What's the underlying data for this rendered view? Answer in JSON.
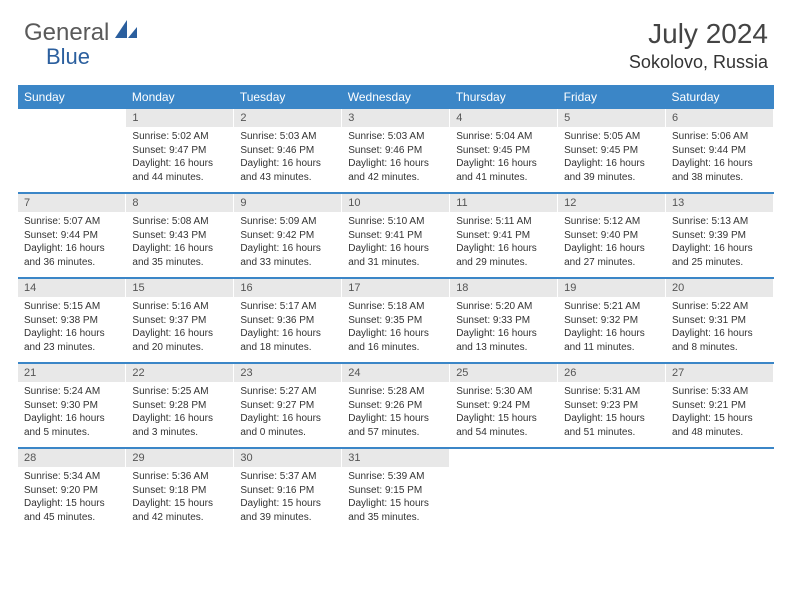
{
  "logo": {
    "text1": "General",
    "text2": "Blue",
    "color1": "#6a6a6a",
    "color2": "#2b5f9e"
  },
  "title": {
    "month": "July 2024",
    "location": "Sokolovo, Russia"
  },
  "colors": {
    "header_bg": "#3b86c7",
    "daynum_bg": "#e8e8e8",
    "rule": "#3b86c7"
  },
  "day_headers": [
    "Sunday",
    "Monday",
    "Tuesday",
    "Wednesday",
    "Thursday",
    "Friday",
    "Saturday"
  ],
  "weeks": [
    [
      null,
      {
        "n": "1",
        "sr": "5:02 AM",
        "ss": "9:47 PM",
        "dl": "16 hours and 44 minutes."
      },
      {
        "n": "2",
        "sr": "5:03 AM",
        "ss": "9:46 PM",
        "dl": "16 hours and 43 minutes."
      },
      {
        "n": "3",
        "sr": "5:03 AM",
        "ss": "9:46 PM",
        "dl": "16 hours and 42 minutes."
      },
      {
        "n": "4",
        "sr": "5:04 AM",
        "ss": "9:45 PM",
        "dl": "16 hours and 41 minutes."
      },
      {
        "n": "5",
        "sr": "5:05 AM",
        "ss": "9:45 PM",
        "dl": "16 hours and 39 minutes."
      },
      {
        "n": "6",
        "sr": "5:06 AM",
        "ss": "9:44 PM",
        "dl": "16 hours and 38 minutes."
      }
    ],
    [
      {
        "n": "7",
        "sr": "5:07 AM",
        "ss": "9:44 PM",
        "dl": "16 hours and 36 minutes."
      },
      {
        "n": "8",
        "sr": "5:08 AM",
        "ss": "9:43 PM",
        "dl": "16 hours and 35 minutes."
      },
      {
        "n": "9",
        "sr": "5:09 AM",
        "ss": "9:42 PM",
        "dl": "16 hours and 33 minutes."
      },
      {
        "n": "10",
        "sr": "5:10 AM",
        "ss": "9:41 PM",
        "dl": "16 hours and 31 minutes."
      },
      {
        "n": "11",
        "sr": "5:11 AM",
        "ss": "9:41 PM",
        "dl": "16 hours and 29 minutes."
      },
      {
        "n": "12",
        "sr": "5:12 AM",
        "ss": "9:40 PM",
        "dl": "16 hours and 27 minutes."
      },
      {
        "n": "13",
        "sr": "5:13 AM",
        "ss": "9:39 PM",
        "dl": "16 hours and 25 minutes."
      }
    ],
    [
      {
        "n": "14",
        "sr": "5:15 AM",
        "ss": "9:38 PM",
        "dl": "16 hours and 23 minutes."
      },
      {
        "n": "15",
        "sr": "5:16 AM",
        "ss": "9:37 PM",
        "dl": "16 hours and 20 minutes."
      },
      {
        "n": "16",
        "sr": "5:17 AM",
        "ss": "9:36 PM",
        "dl": "16 hours and 18 minutes."
      },
      {
        "n": "17",
        "sr": "5:18 AM",
        "ss": "9:35 PM",
        "dl": "16 hours and 16 minutes."
      },
      {
        "n": "18",
        "sr": "5:20 AM",
        "ss": "9:33 PM",
        "dl": "16 hours and 13 minutes."
      },
      {
        "n": "19",
        "sr": "5:21 AM",
        "ss": "9:32 PM",
        "dl": "16 hours and 11 minutes."
      },
      {
        "n": "20",
        "sr": "5:22 AM",
        "ss": "9:31 PM",
        "dl": "16 hours and 8 minutes."
      }
    ],
    [
      {
        "n": "21",
        "sr": "5:24 AM",
        "ss": "9:30 PM",
        "dl": "16 hours and 5 minutes."
      },
      {
        "n": "22",
        "sr": "5:25 AM",
        "ss": "9:28 PM",
        "dl": "16 hours and 3 minutes."
      },
      {
        "n": "23",
        "sr": "5:27 AM",
        "ss": "9:27 PM",
        "dl": "16 hours and 0 minutes."
      },
      {
        "n": "24",
        "sr": "5:28 AM",
        "ss": "9:26 PM",
        "dl": "15 hours and 57 minutes."
      },
      {
        "n": "25",
        "sr": "5:30 AM",
        "ss": "9:24 PM",
        "dl": "15 hours and 54 minutes."
      },
      {
        "n": "26",
        "sr": "5:31 AM",
        "ss": "9:23 PM",
        "dl": "15 hours and 51 minutes."
      },
      {
        "n": "27",
        "sr": "5:33 AM",
        "ss": "9:21 PM",
        "dl": "15 hours and 48 minutes."
      }
    ],
    [
      {
        "n": "28",
        "sr": "5:34 AM",
        "ss": "9:20 PM",
        "dl": "15 hours and 45 minutes."
      },
      {
        "n": "29",
        "sr": "5:36 AM",
        "ss": "9:18 PM",
        "dl": "15 hours and 42 minutes."
      },
      {
        "n": "30",
        "sr": "5:37 AM",
        "ss": "9:16 PM",
        "dl": "15 hours and 39 minutes."
      },
      {
        "n": "31",
        "sr": "5:39 AM",
        "ss": "9:15 PM",
        "dl": "15 hours and 35 minutes."
      },
      null,
      null,
      null
    ]
  ],
  "labels": {
    "sunrise": "Sunrise:",
    "sunset": "Sunset:",
    "daylight": "Daylight:"
  }
}
